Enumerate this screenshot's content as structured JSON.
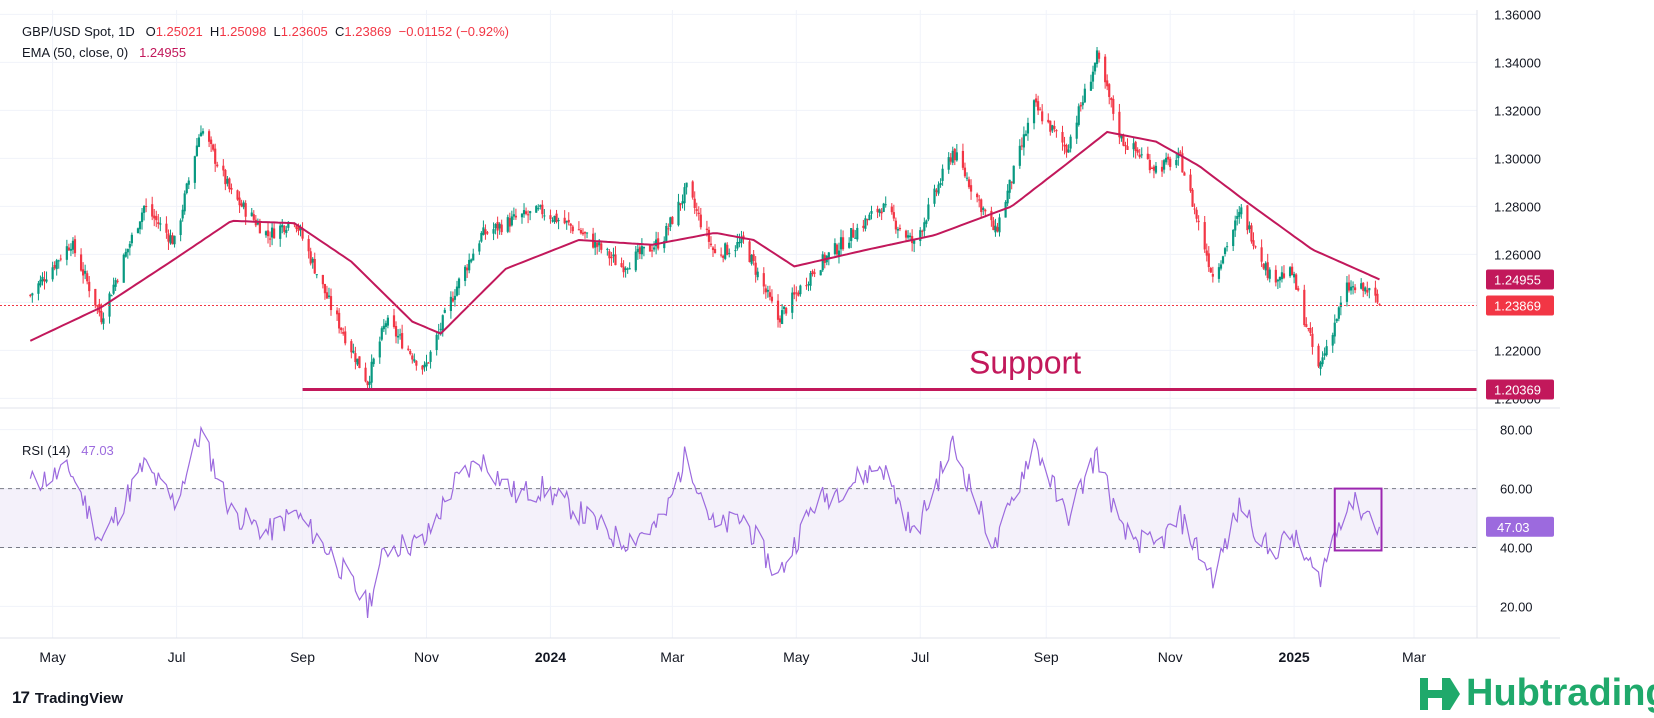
{
  "header": {
    "symbol": "GBP/USD Spot, 1D",
    "open_label": "O",
    "open": "1.25021",
    "high_label": "H",
    "high": "1.25098",
    "low_label": "L",
    "low": "1.23605",
    "close_label": "C",
    "close": "1.23869",
    "change": "−0.01152 (−0.92%)",
    "ema_label": "EMA (50, close, 0)",
    "ema_value": "1.24955"
  },
  "rsi": {
    "label": "RSI (14)",
    "value": "47.03"
  },
  "branding": {
    "tradingview": "TradingView",
    "hubtrading": "Hubtrading"
  },
  "colors": {
    "up": "#089981",
    "down": "#f23645",
    "ema": "#c2185b",
    "support": "#c2185b",
    "rsi_line": "#9c6ade",
    "rsi_band": "#ede7f6",
    "close_line": "#f23645",
    "box": "#9c27b0"
  },
  "chart_data": {
    "type": "candlestick",
    "symbol": "GBP/USD Spot",
    "timeframe": "1D",
    "price_axis": {
      "ticks": [
        "1.36000",
        "1.34000",
        "1.32000",
        "1.30000",
        "1.28000",
        "1.26000",
        "1.24000",
        "1.22000",
        "1.20000"
      ],
      "ylim": [
        1.1985,
        1.361
      ]
    },
    "time_axis": {
      "labels": [
        "May",
        "Jul",
        "Sep",
        "Nov",
        "2024",
        "Mar",
        "May",
        "Jul",
        "Sep",
        "Nov",
        "2025",
        "Mar"
      ],
      "bold_labels": [
        "2024",
        "2025"
      ]
    },
    "price_tags": {
      "ema": "1.24955",
      "close": "1.23869",
      "support": "1.20369"
    },
    "support": {
      "label": "Support",
      "value": 1.20369,
      "from": "2023-09",
      "to": "2025-02"
    },
    "ema_period": 50,
    "ohlc_anchors": [
      {
        "t": "2023-04-20",
        "c": 1.243
      },
      {
        "t": "2023-05-10",
        "c": 1.265
      },
      {
        "t": "2023-05-25",
        "c": 1.234
      },
      {
        "t": "2023-06-15",
        "c": 1.28
      },
      {
        "t": "2023-06-30",
        "c": 1.265
      },
      {
        "t": "2023-07-13",
        "c": 1.313
      },
      {
        "t": "2023-07-28",
        "c": 1.285
      },
      {
        "t": "2023-08-15",
        "c": 1.268
      },
      {
        "t": "2023-08-28",
        "c": 1.275
      },
      {
        "t": "2023-09-15",
        "c": 1.238
      },
      {
        "t": "2023-10-03",
        "c": 1.207
      },
      {
        "t": "2023-10-12",
        "c": 1.232
      },
      {
        "t": "2023-10-31",
        "c": 1.212
      },
      {
        "t": "2023-11-15",
        "c": 1.245
      },
      {
        "t": "2023-11-28",
        "c": 1.268
      },
      {
        "t": "2023-12-15",
        "c": 1.275
      },
      {
        "t": "2023-12-28",
        "c": 1.278
      },
      {
        "t": "2024-01-15",
        "c": 1.27
      },
      {
        "t": "2024-02-05",
        "c": 1.255
      },
      {
        "t": "2024-02-25",
        "c": 1.266
      },
      {
        "t": "2024-03-08",
        "c": 1.287
      },
      {
        "t": "2024-03-22",
        "c": 1.26
      },
      {
        "t": "2024-04-05",
        "c": 1.265
      },
      {
        "t": "2024-04-22",
        "c": 1.233
      },
      {
        "t": "2024-05-10",
        "c": 1.254
      },
      {
        "t": "2024-06-12",
        "c": 1.28
      },
      {
        "t": "2024-06-28",
        "c": 1.264
      },
      {
        "t": "2024-07-17",
        "c": 1.303
      },
      {
        "t": "2024-08-07",
        "c": 1.269
      },
      {
        "t": "2024-08-26",
        "c": 1.322
      },
      {
        "t": "2024-09-11",
        "c": 1.304
      },
      {
        "t": "2024-09-26",
        "c": 1.342
      },
      {
        "t": "2024-10-08",
        "c": 1.308
      },
      {
        "t": "2024-10-25",
        "c": 1.296
      },
      {
        "t": "2024-11-06",
        "c": 1.3
      },
      {
        "t": "2024-11-22",
        "c": 1.251
      },
      {
        "t": "2024-12-06",
        "c": 1.278
      },
      {
        "t": "2024-12-20",
        "c": 1.251
      },
      {
        "t": "2024-12-31",
        "c": 1.252
      },
      {
        "t": "2025-01-13",
        "c": 1.212
      },
      {
        "t": "2025-01-27",
        "c": 1.246
      },
      {
        "t": "2025-02-06",
        "c": 1.245
      },
      {
        "t": "2025-02-12",
        "c": 1.239
      }
    ],
    "ema_anchors": [
      {
        "t": "2023-04-20",
        "v": 1.224
      },
      {
        "t": "2023-05-25",
        "v": 1.238
      },
      {
        "t": "2023-06-30",
        "v": 1.258
      },
      {
        "t": "2023-07-28",
        "v": 1.274
      },
      {
        "t": "2023-08-28",
        "v": 1.273
      },
      {
        "t": "2023-09-25",
        "v": 1.257
      },
      {
        "t": "2023-10-25",
        "v": 1.232
      },
      {
        "t": "2023-11-08",
        "v": 1.227
      },
      {
        "t": "2023-12-10",
        "v": 1.254
      },
      {
        "t": "2024-01-15",
        "v": 1.266
      },
      {
        "t": "2024-02-20",
        "v": 1.264
      },
      {
        "t": "2024-03-22",
        "v": 1.269
      },
      {
        "t": "2024-04-10",
        "v": 1.266
      },
      {
        "t": "2024-04-30",
        "v": 1.255
      },
      {
        "t": "2024-06-05",
        "v": 1.262
      },
      {
        "t": "2024-07-08",
        "v": 1.268
      },
      {
        "t": "2024-08-15",
        "v": 1.28
      },
      {
        "t": "2024-09-10",
        "v": 1.297
      },
      {
        "t": "2024-10-01",
        "v": 1.311
      },
      {
        "t": "2024-10-25",
        "v": 1.307
      },
      {
        "t": "2024-11-15",
        "v": 1.297
      },
      {
        "t": "2024-12-10",
        "v": 1.281
      },
      {
        "t": "2025-01-10",
        "v": 1.262
      },
      {
        "t": "2025-02-12",
        "v": 1.2496
      }
    ],
    "rsi_axis": {
      "ticks": [
        "80.00",
        "60.00",
        "40.00",
        "20.00"
      ],
      "ylim": [
        12,
        86
      ],
      "band": [
        40,
        60
      ]
    },
    "rsi_anchors": [
      {
        "t": "2023-04-20",
        "v": 62
      },
      {
        "t": "2023-05-10",
        "v": 66
      },
      {
        "t": "2023-05-25",
        "v": 42
      },
      {
        "t": "2023-06-15",
        "v": 68
      },
      {
        "t": "2023-06-30",
        "v": 55
      },
      {
        "t": "2023-07-13",
        "v": 79
      },
      {
        "t": "2023-07-28",
        "v": 52
      },
      {
        "t": "2023-08-15",
        "v": 45
      },
      {
        "t": "2023-08-28",
        "v": 52
      },
      {
        "t": "2023-09-15",
        "v": 38
      },
      {
        "t": "2023-10-03",
        "v": 20
      },
      {
        "t": "2023-10-12",
        "v": 40
      },
      {
        "t": "2023-10-31",
        "v": 42
      },
      {
        "t": "2023-11-15",
        "v": 62
      },
      {
        "t": "2023-11-28",
        "v": 70
      },
      {
        "t": "2023-12-15",
        "v": 58
      },
      {
        "t": "2023-12-28",
        "v": 60
      },
      {
        "t": "2024-01-15",
        "v": 52
      },
      {
        "t": "2024-02-05",
        "v": 42
      },
      {
        "t": "2024-02-25",
        "v": 48
      },
      {
        "t": "2024-03-08",
        "v": 72
      },
      {
        "t": "2024-03-22",
        "v": 46
      },
      {
        "t": "2024-04-05",
        "v": 50
      },
      {
        "t": "2024-04-22",
        "v": 30
      },
      {
        "t": "2024-05-10",
        "v": 55
      },
      {
        "t": "2024-06-12",
        "v": 68
      },
      {
        "t": "2024-06-28",
        "v": 44
      },
      {
        "t": "2024-07-17",
        "v": 75
      },
      {
        "t": "2024-08-07",
        "v": 40
      },
      {
        "t": "2024-08-26",
        "v": 76
      },
      {
        "t": "2024-09-11",
        "v": 50
      },
      {
        "t": "2024-09-26",
        "v": 72
      },
      {
        "t": "2024-10-08",
        "v": 45
      },
      {
        "t": "2024-10-25",
        "v": 40
      },
      {
        "t": "2024-11-06",
        "v": 50
      },
      {
        "t": "2024-11-22",
        "v": 30
      },
      {
        "t": "2024-12-06",
        "v": 55
      },
      {
        "t": "2024-12-20",
        "v": 38
      },
      {
        "t": "2024-12-31",
        "v": 44
      },
      {
        "t": "2025-01-13",
        "v": 29
      },
      {
        "t": "2025-01-27",
        "v": 56
      },
      {
        "t": "2025-02-06",
        "v": 52
      },
      {
        "t": "2025-02-12",
        "v": 47
      }
    ],
    "rsi_highlight": {
      "from": "2025-01-21",
      "to": "2025-02-13",
      "ylim": [
        39,
        60
      ]
    }
  }
}
